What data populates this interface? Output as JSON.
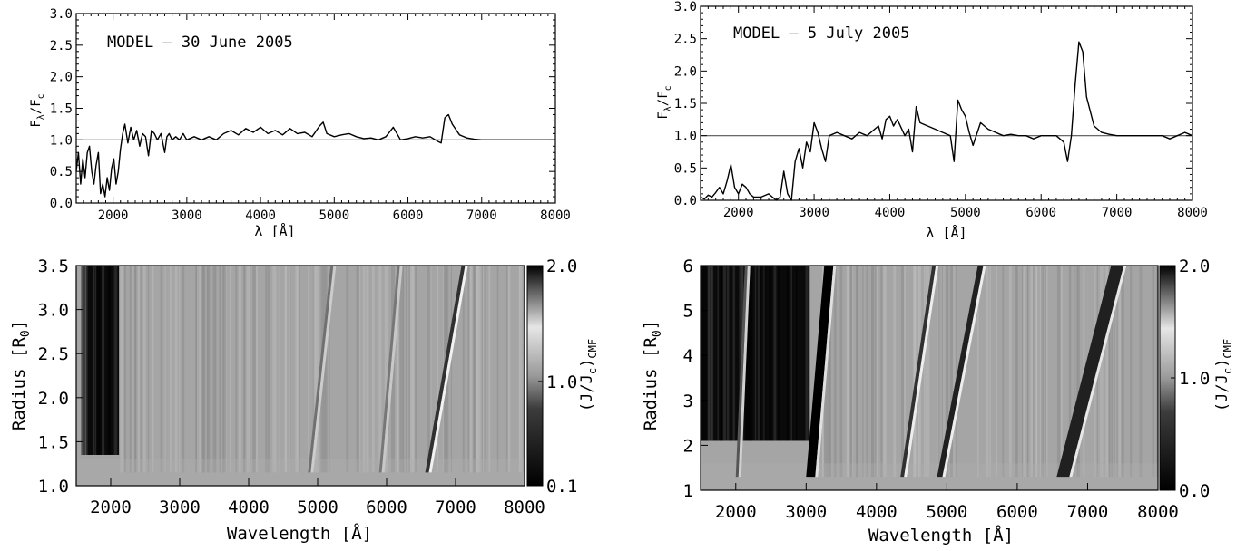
{
  "chart_data": [
    {
      "type": "line",
      "panel": "top-left",
      "annotation": "MODEL – 30 June 2005",
      "xlabel": "λ [Å]",
      "ylabel_main": "F",
      "ylabel_sub1": "λ",
      "ylabel_sep": "/F",
      "ylabel_sub2": "c",
      "xlim": [
        1500,
        8000
      ],
      "ylim": [
        0,
        3.0
      ],
      "xticks": [
        "2000",
        "3000",
        "4000",
        "5000",
        "6000",
        "7000",
        "8000"
      ],
      "yticks": [
        "0.0",
        "0.5",
        "1.0",
        "1.5",
        "2.0",
        "2.5",
        "3.0"
      ],
      "reference_line": 1.0,
      "series": [
        {
          "x": [
            1500,
            1530,
            1560,
            1590,
            1620,
            1650,
            1680,
            1710,
            1740,
            1770,
            1800,
            1830,
            1860,
            1890,
            1920,
            1950,
            1980,
            2010,
            2040,
            2070,
            2100,
            2130,
            2160,
            2200,
            2240,
            2280,
            2320,
            2360,
            2400,
            2440,
            2480,
            2520,
            2560,
            2600,
            2650,
            2700,
            2730,
            2760,
            2800,
            2850,
            2900,
            2950,
            3000,
            3100,
            3200,
            3300,
            3400,
            3500,
            3600,
            3700,
            3800,
            3900,
            4000,
            4100,
            4200,
            4300,
            4400,
            4500,
            4600,
            4700,
            4800,
            4850,
            4900,
            5000,
            5100,
            5200,
            5300,
            5400,
            5500,
            5600,
            5700,
            5800,
            5850,
            5900,
            6000,
            6100,
            6200,
            6300,
            6400,
            6450,
            6500,
            6550,
            6600,
            6700,
            6800,
            6900,
            7000,
            7200,
            7400,
            7600,
            7800,
            8000
          ],
          "y": [
            0.5,
            0.8,
            0.3,
            0.7,
            0.4,
            0.8,
            0.9,
            0.5,
            0.3,
            0.6,
            0.8,
            0.15,
            0.3,
            0.1,
            0.4,
            0.2,
            0.55,
            0.7,
            0.3,
            0.5,
            0.85,
            1.1,
            1.25,
            0.95,
            1.2,
            1.0,
            1.15,
            0.9,
            1.1,
            1.05,
            0.75,
            1.15,
            1.1,
            1.0,
            1.1,
            0.8,
            1.05,
            1.1,
            1.0,
            1.05,
            1.0,
            1.1,
            1.0,
            1.05,
            1.0,
            1.05,
            1.0,
            1.1,
            1.15,
            1.08,
            1.18,
            1.12,
            1.2,
            1.1,
            1.15,
            1.08,
            1.18,
            1.1,
            1.12,
            1.05,
            1.22,
            1.28,
            1.1,
            1.05,
            1.08,
            1.1,
            1.05,
            1.02,
            1.03,
            1.0,
            1.05,
            1.2,
            1.1,
            1.0,
            1.02,
            1.05,
            1.03,
            1.05,
            0.98,
            0.95,
            1.35,
            1.4,
            1.25,
            1.08,
            1.03,
            1.01,
            1.0,
            1.0,
            1.0,
            1.0,
            1.0,
            1.0
          ]
        }
      ]
    },
    {
      "type": "line",
      "panel": "top-right",
      "annotation": "MODEL – 5 July 2005",
      "xlabel": "λ [Å]",
      "ylabel_main": "F",
      "ylabel_sub1": "λ",
      "ylabel_sep": "/F",
      "ylabel_sub2": "c",
      "xlim": [
        1500,
        8000
      ],
      "ylim": [
        0,
        3.0
      ],
      "xticks": [
        "2000",
        "3000",
        "4000",
        "5000",
        "6000",
        "7000",
        "8000"
      ],
      "yticks": [
        "0.0",
        "0.5",
        "1.0",
        "1.5",
        "2.0",
        "2.5",
        "3.0"
      ],
      "reference_line": 1.0,
      "series": [
        {
          "x": [
            1500,
            1550,
            1600,
            1650,
            1700,
            1750,
            1800,
            1850,
            1900,
            1950,
            2000,
            2050,
            2100,
            2150,
            2200,
            2300,
            2400,
            2500,
            2550,
            2600,
            2650,
            2700,
            2750,
            2800,
            2850,
            2900,
            2950,
            3000,
            3050,
            3100,
            3150,
            3200,
            3300,
            3400,
            3500,
            3600,
            3700,
            3800,
            3850,
            3900,
            3950,
            4000,
            4050,
            4100,
            4200,
            4250,
            4300,
            4350,
            4400,
            4500,
            4600,
            4700,
            4800,
            4850,
            4900,
            4950,
            5000,
            5050,
            5100,
            5200,
            5300,
            5400,
            5500,
            5600,
            5700,
            5800,
            5900,
            6000,
            6100,
            6200,
            6300,
            6350,
            6400,
            6450,
            6500,
            6550,
            6600,
            6700,
            6800,
            6900,
            7000,
            7200,
            7400,
            7600,
            7700,
            7800,
            7900,
            8000
          ],
          "y": [
            0.05,
            0.02,
            0.08,
            0.05,
            0.12,
            0.2,
            0.1,
            0.3,
            0.55,
            0.2,
            0.1,
            0.25,
            0.2,
            0.1,
            0.05,
            0.05,
            0.1,
            0.0,
            0.05,
            0.45,
            0.1,
            0.0,
            0.6,
            0.8,
            0.5,
            0.9,
            0.75,
            1.2,
            1.05,
            0.8,
            0.6,
            1.0,
            1.05,
            1.0,
            0.95,
            1.05,
            1.0,
            1.1,
            1.15,
            0.95,
            1.25,
            1.3,
            1.15,
            1.25,
            1.0,
            1.1,
            0.75,
            1.45,
            1.2,
            1.15,
            1.1,
            1.05,
            1.0,
            0.6,
            1.55,
            1.4,
            1.3,
            1.05,
            0.85,
            1.2,
            1.1,
            1.05,
            1.0,
            1.02,
            1.0,
            1.0,
            0.95,
            1.0,
            1.0,
            1.0,
            0.9,
            0.6,
            1.0,
            1.8,
            2.45,
            2.3,
            1.6,
            1.15,
            1.05,
            1.02,
            1.0,
            1.0,
            1.0,
            1.0,
            0.95,
            1.0,
            1.05,
            1.0
          ]
        }
      ]
    },
    {
      "type": "heatmap",
      "panel": "bottom-left",
      "xlabel": "Wavelength [Å]",
      "ylabel_main": "Radius [R",
      "ylabel_sub": "0",
      "ylabel_end": "]",
      "xlim": [
        1500,
        8000
      ],
      "ylim": [
        1.0,
        3.5
      ],
      "xticks": [
        "2000",
        "3000",
        "4000",
        "5000",
        "6000",
        "7000",
        "8000"
      ],
      "yticks": [
        "1.0",
        "1.5",
        "2.0",
        "2.5",
        "3.0",
        "3.5"
      ],
      "colorbar": {
        "label_main": "(J/J",
        "label_sub1": "c",
        "label_end": ")",
        "label_sub2": "CMF",
        "ticks": [
          "0.1",
          "1.0",
          "2.0"
        ],
        "ticks_values": [
          0.1,
          1.0,
          2.0
        ],
        "range": [
          0.1,
          2.0
        ]
      }
    },
    {
      "type": "heatmap",
      "panel": "bottom-right",
      "xlabel": "Wavelength [Å]",
      "ylabel_main": "Radius [R",
      "ylabel_sub": "0",
      "ylabel_end": "]",
      "xlim": [
        1500,
        8000
      ],
      "ylim": [
        1,
        6
      ],
      "xticks": [
        "2000",
        "3000",
        "4000",
        "5000",
        "6000",
        "7000",
        "8000"
      ],
      "yticks": [
        "1",
        "2",
        "3",
        "4",
        "5",
        "6"
      ],
      "colorbar": {
        "label_main": "(J/J",
        "label_sub1": "c",
        "label_end": ")",
        "label_sub2": "CMF",
        "ticks": [
          "0.0",
          "1.0",
          "2.0"
        ],
        "ticks_values": [
          0.0,
          1.0,
          2.0
        ],
        "range": [
          0.0,
          2.0
        ]
      }
    }
  ]
}
